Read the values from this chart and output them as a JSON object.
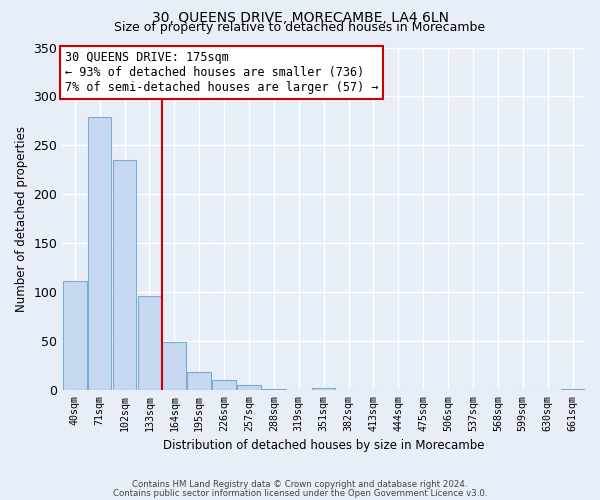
{
  "title": "30, QUEENS DRIVE, MORECAMBE, LA4 6LN",
  "subtitle": "Size of property relative to detached houses in Morecambe",
  "xlabel": "Distribution of detached houses by size in Morecambe",
  "ylabel": "Number of detached properties",
  "bar_labels": [
    "40sqm",
    "71sqm",
    "102sqm",
    "133sqm",
    "164sqm",
    "195sqm",
    "226sqm",
    "257sqm",
    "288sqm",
    "319sqm",
    "351sqm",
    "382sqm",
    "413sqm",
    "444sqm",
    "475sqm",
    "506sqm",
    "537sqm",
    "568sqm",
    "599sqm",
    "630sqm",
    "661sqm"
  ],
  "bar_values": [
    112,
    279,
    235,
    96,
    49,
    19,
    11,
    5,
    1,
    0,
    2,
    0,
    0,
    0,
    0,
    0,
    0,
    0,
    0,
    0,
    1
  ],
  "bar_color": "#c5d8ef",
  "bar_edge_color": "#7aadd4",
  "vline_x": 3.5,
  "vline_color": "#cc0000",
  "annotation_title": "30 QUEENS DRIVE: 175sqm",
  "annotation_line1": "← 93% of detached houses are smaller (736)",
  "annotation_line2": "7% of semi-detached houses are larger (57) →",
  "annotation_box_color": "#ffffff",
  "annotation_box_edge": "#cc0000",
  "ylim": [
    0,
    350
  ],
  "yticks": [
    0,
    50,
    100,
    150,
    200,
    250,
    300,
    350
  ],
  "footnote1": "Contains HM Land Registry data © Crown copyright and database right 2024.",
  "footnote2": "Contains public sector information licensed under the Open Government Licence v3.0.",
  "bg_color": "#e8eef8",
  "grid_color": "#ffffff",
  "title_fontsize": 10,
  "subtitle_fontsize": 9
}
